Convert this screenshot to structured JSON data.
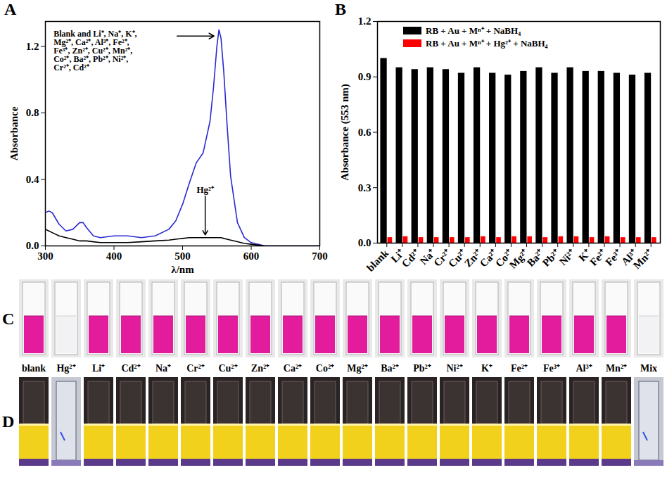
{
  "chart_data": [
    {
      "panel": "A",
      "type": "line",
      "x": [
        300,
        305,
        310,
        320,
        330,
        340,
        350,
        355,
        360,
        370,
        380,
        400,
        420,
        440,
        460,
        480,
        490,
        500,
        510,
        520,
        530,
        540,
        545,
        550,
        553,
        556,
        560,
        565,
        570,
        580,
        590,
        600,
        620,
        650,
        700
      ],
      "series": [
        {
          "name": "Blank and Li⁺, Na⁺, K⁺, Mg²⁺, Ca²⁺, Al³⁺, Fe²⁺, Fe³⁺, Zn²⁺, Cu²⁺, Mn²⁺, Co²⁺, Ba²⁺, Pb²⁺, Ni²⁺, Cr²⁺, Cd²⁺",
          "color": "#2a2ad0",
          "values": [
            0.2,
            0.21,
            0.2,
            0.13,
            0.09,
            0.1,
            0.14,
            0.14,
            0.11,
            0.06,
            0.05,
            0.06,
            0.06,
            0.05,
            0.06,
            0.1,
            0.15,
            0.25,
            0.38,
            0.5,
            0.56,
            0.75,
            0.95,
            1.2,
            1.3,
            1.25,
            1.05,
            0.72,
            0.42,
            0.14,
            0.05,
            0.02,
            0.0,
            0.0,
            0.0
          ]
        },
        {
          "name": "Hg²⁺",
          "color": "#000000",
          "values": [
            0.1,
            0.09,
            0.08,
            0.06,
            0.05,
            0.04,
            0.03,
            0.03,
            0.03,
            0.025,
            0.02,
            0.02,
            0.02,
            0.025,
            0.03,
            0.035,
            0.04,
            0.045,
            0.05,
            0.05,
            0.05,
            0.05,
            0.05,
            0.05,
            0.05,
            0.05,
            0.045,
            0.04,
            0.035,
            0.025,
            0.015,
            0.01,
            0.0,
            0.0,
            0.0
          ]
        }
      ],
      "xlim": [
        300,
        700
      ],
      "xticks": [
        300,
        400,
        500,
        600,
        700
      ],
      "ylim": [
        0,
        1.35
      ],
      "yticks": [
        {
          "value": 0,
          "label": "0.0"
        },
        0.4,
        0.8,
        1.2
      ],
      "x_label": "λ/nm",
      "y_label": "Absorbance"
    },
    {
      "panel": "B",
      "type": "bar",
      "categories": [
        "blank",
        "Li⁺",
        "Cd²⁺",
        "Na⁺",
        "Cr²⁺",
        "Cu²⁺",
        "Zn²⁺",
        "Ca²⁺",
        "Co²⁺",
        "Mg²⁺",
        "Ba²⁺",
        "Pb²⁺",
        "Ni²⁺",
        "K⁺",
        "Fe²⁺",
        "Fe³⁺",
        "Al³⁺",
        "Mn²⁺"
      ],
      "series": [
        {
          "name": "RB + Au + Mⁿ⁺ + NaBH₄",
          "color": "#000000",
          "values": [
            1.0,
            0.95,
            0.94,
            0.95,
            0.94,
            0.92,
            0.95,
            0.92,
            0.91,
            0.93,
            0.95,
            0.92,
            0.95,
            0.93,
            0.93,
            0.92,
            0.91,
            0.92
          ]
        },
        {
          "name": "RB + Au + Mⁿ⁺ + Hg²⁺ + NaBH₄",
          "color": "#ff0000",
          "values": [
            0.03,
            0.035,
            0.03,
            0.03,
            0.03,
            0.03,
            0.035,
            0.03,
            0.035,
            0.035,
            0.03,
            0.035,
            0.035,
            0.03,
            0.035,
            0.03,
            0.03,
            0.03
          ]
        }
      ],
      "ylim": [
        0,
        1.2
      ],
      "yticks": [
        {
          "value": 0,
          "label": "0.0"
        },
        0.3,
        0.6,
        0.9,
        1.2
      ],
      "y_label": "Absorbance (553 nm)",
      "legend": "top-left"
    }
  ],
  "photo_panels": [
    {
      "letter": "C",
      "color": "#e21c9c"
    },
    {
      "letter": "D",
      "color": "#f2d11c"
    }
  ],
  "sample_labels": [
    "blank",
    "Hg²⁺",
    "Li⁺",
    "Cd²⁺",
    "Na⁺",
    "Cr²⁺",
    "Cu²⁺",
    "Zn²⁺",
    "Ca²⁺",
    "Co²⁺",
    "Mg²⁺",
    "Ba²⁺",
    "Pb²⁺",
    "Ni²⁺",
    "K⁺",
    "Fe²⁺",
    "Fe³⁺",
    "Al³⁺",
    "Mn²⁺",
    "Mix"
  ],
  "clear_samples": [
    "Hg²⁺",
    "Mix"
  ]
}
